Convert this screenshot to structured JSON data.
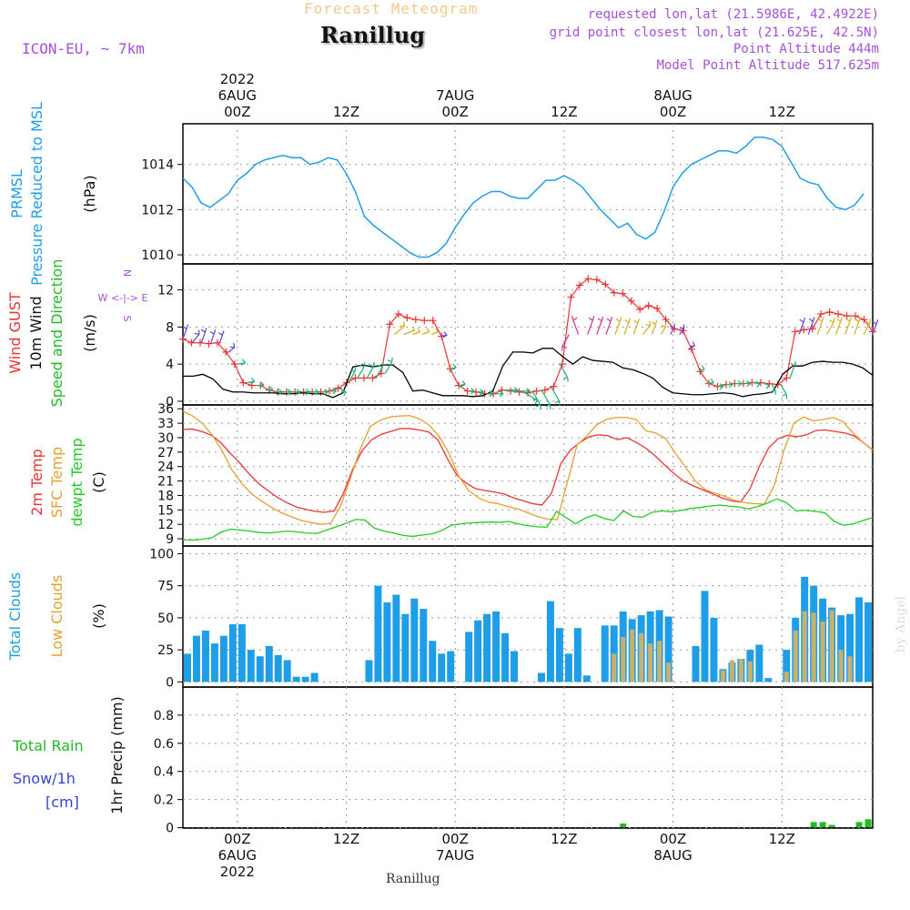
{
  "header": {
    "title": "Forecast Meteogram",
    "station": "Ranillug",
    "model": "ICON-EU, ~ 7km",
    "requested": "requested lon,lat (21.5986E, 42.4922E)",
    "grid_point": "grid point closest lon,lat (21.625E, 42.5N)",
    "point_altitude": "Point Altitude 444m",
    "model_altitude": "Model Point Altitude 517.625m",
    "credit": "by Angel",
    "bottom_name": "Ranillug"
  },
  "colors": {
    "pressure": "#1f9ee8",
    "gust": "#ee3333",
    "wind": "#000000",
    "wind_dir": "#22bb22",
    "temp2m": "#ee3333",
    "sfc_temp": "#e8a030",
    "dewpt": "#22cc22",
    "total_clouds": "#1f9ee8",
    "low_clouds": "#c8b070",
    "rain": "#22bb22",
    "snow": "#3344dd",
    "header": "#a74fdb"
  },
  "time_axis": {
    "top_labels": [
      {
        "h": 6,
        "lines": [
          "2022",
          "6AUG",
          "00Z"
        ]
      },
      {
        "h": 18,
        "lines": [
          "12Z"
        ]
      },
      {
        "h": 30,
        "lines": [
          "7AUG",
          "00Z"
        ]
      },
      {
        "h": 42,
        "lines": [
          "12Z"
        ]
      },
      {
        "h": 54,
        "lines": [
          "8AUG",
          "00Z"
        ]
      },
      {
        "h": 66,
        "lines": [
          "12Z"
        ]
      }
    ],
    "bottom_labels": [
      {
        "h": 6,
        "lines": [
          "00Z",
          "6AUG",
          "2022"
        ]
      },
      {
        "h": 18,
        "lines": [
          "12Z"
        ]
      },
      {
        "h": 30,
        "lines": [
          "00Z",
          "7AUG"
        ]
      },
      {
        "h": 42,
        "lines": [
          "12Z"
        ]
      },
      {
        "h": 54,
        "lines": [
          "00Z",
          "8AUG"
        ]
      },
      {
        "h": 66,
        "lines": [
          "12Z"
        ]
      }
    ]
  },
  "chart_data": [
    {
      "type": "line",
      "title": "",
      "ylabels": [
        "PRMSL",
        "Pressure Reduced to MSL"
      ],
      "unit": "(hPa)",
      "ylim": [
        1009.6,
        1015.8
      ],
      "yticks": [
        1010,
        1012,
        1014
      ],
      "series": [
        {
          "values": [
            1013.4,
            1013.0,
            1012.3,
            1012.1,
            1012.4,
            1012.7,
            1013.3,
            1013.6,
            1014.0,
            1014.2,
            1014.3,
            1014.4,
            1014.3,
            1014.3,
            1014.0,
            1014.1,
            1014.3,
            1014.2,
            1013.6,
            1012.8,
            1011.7,
            1011.3,
            1011.0,
            1010.7,
            1010.4,
            1010.1,
            1009.9,
            1009.9,
            1010.1,
            1010.5,
            1011.2,
            1011.8,
            1012.3,
            1012.6,
            1012.8,
            1012.8,
            1012.6,
            1012.5,
            1012.5,
            1012.9,
            1013.3,
            1013.3,
            1013.5,
            1013.3,
            1013.0,
            1012.5,
            1012.0,
            1011.6,
            1011.2,
            1011.4,
            1010.9,
            1010.7,
            1011.0,
            1011.9,
            1013.0,
            1013.6,
            1014.0,
            1014.2,
            1014.4,
            1014.6,
            1014.6,
            1014.5,
            1014.8,
            1015.2,
            1015.2,
            1015.1,
            1014.8,
            1014.1,
            1013.4,
            1013.2,
            1013.1,
            1012.5,
            1012.1,
            1012.0,
            1012.2,
            1012.7
          ]
        }
      ]
    },
    {
      "type": "line",
      "title": "",
      "ylabels": [
        "Wind GUST",
        "10m Wind",
        "Speed and Direction"
      ],
      "unit": "(m/s)",
      "compass": [
        "N",
        "W <-|-> E",
        "S"
      ],
      "ylim": [
        -0.4,
        14.8
      ],
      "yticks": [
        0,
        4,
        8,
        12
      ],
      "series": [
        {
          "name": "Wind GUST",
          "values": [
            6.7,
            6.3,
            6.3,
            6.2,
            6.3,
            5.3,
            4.0,
            2.0,
            1.7,
            1.7,
            1.2,
            1.0,
            1.0,
            1.0,
            1.0,
            1.0,
            1.0,
            1.1,
            1.4,
            2.0,
            2.5,
            2.5,
            2.5,
            3.0,
            8.3,
            9.4,
            9.0,
            8.8,
            8.7,
            8.7,
            7.0,
            3.5,
            1.7,
            1.1,
            1.0,
            0.8,
            0.8,
            1.2,
            1.1,
            1.0,
            0.9,
            1.1,
            1.2,
            1.6,
            4.0,
            11.2,
            12.5,
            13.2,
            13.1,
            12.6,
            11.7,
            11.6,
            10.8,
            9.9,
            10.3,
            10.0,
            8.8,
            7.8,
            7.6,
            5.6,
            3.2,
            1.9,
            1.6,
            1.8,
            1.9,
            1.9,
            2.0,
            2.0,
            1.9,
            1.8,
            2.5,
            7.5,
            7.7,
            7.8,
            9.4,
            9.6,
            9.4,
            9.2,
            9.2,
            8.8,
            7.5
          ]
        },
        {
          "name": "10m Wind",
          "values": [
            2.7,
            2.7,
            2.9,
            2.4,
            1.3,
            1.0,
            1.0,
            0.9,
            0.9,
            0.9,
            0.8,
            0.8,
            0.9,
            0.8,
            0.8,
            0.4,
            0.9,
            3.7,
            3.9,
            3.7,
            3.9,
            3.9,
            3.1,
            1.1,
            1.2,
            0.9,
            0.6,
            0.6,
            0.6,
            0.5,
            0.6,
            1.1,
            3.8,
            5.3,
            5.3,
            5.2,
            5.7,
            5.7,
            4.8,
            4.0,
            4.8,
            4.4,
            4.3,
            4.2,
            3.6,
            3.4,
            3.0,
            2.5,
            1.5,
            0.9,
            0.8,
            0.7,
            0.7,
            0.8,
            0.9,
            0.8,
            0.5,
            0.7,
            0.8,
            1.0,
            2.9,
            3.8,
            3.8,
            4.2,
            4.3,
            4.2,
            4.2,
            4.0,
            3.6,
            2.8
          ]
        },
        {
          "name": "Direction",
          "values": [
            200,
            220,
            200,
            200,
            200,
            230,
            260,
            260,
            265,
            265,
            270,
            270,
            270,
            270,
            270,
            270,
            270,
            300,
            210,
            210,
            210,
            210,
            210,
            230,
            250,
            250,
            250,
            250,
            260,
            260,
            260,
            270,
            270,
            270,
            270,
            270,
            270,
            300,
            330,
            330,
            330,
            330,
            30,
            160,
            200,
            200,
            200,
            200,
            200,
            200,
            220,
            200,
            210,
            210,
            220,
            240,
            250,
            260,
            270,
            270,
            270,
            270,
            280,
            290,
            330,
            330,
            200,
            200,
            200,
            200,
            210,
            200,
            200,
            200,
            210,
            200
          ]
        }
      ]
    },
    {
      "type": "line",
      "title": "",
      "ylabels": [
        "2m Temp",
        "SFC Temp",
        "dewpt Temp"
      ],
      "unit": "(C)",
      "ylim": [
        7.5,
        36.8
      ],
      "yticks": [
        9,
        12,
        15,
        18,
        21,
        24,
        27,
        30,
        33,
        36
      ],
      "series": [
        {
          "name": "2m Temp",
          "values": [
            31.7,
            31.8,
            31.3,
            30.5,
            29.0,
            26.8,
            24.8,
            22.5,
            20.5,
            19.0,
            17.6,
            16.5,
            15.6,
            15.1,
            14.7,
            14.5,
            14.8,
            18.5,
            23.6,
            27.4,
            29.6,
            30.7,
            31.3,
            31.9,
            31.9,
            31.6,
            31.2,
            29.5,
            25.6,
            22.2,
            20.5,
            19.4,
            19.0,
            18.7,
            18.3,
            17.5,
            16.9,
            16.3,
            16.0,
            18.4,
            24.6,
            27.4,
            29.0,
            30.2,
            30.6,
            30.4,
            29.6,
            30.0,
            29.0,
            27.8,
            26.2,
            24.3,
            22.5,
            21.0,
            20.0,
            19.2,
            18.4,
            17.5,
            16.9,
            16.6,
            19.3,
            24.0,
            27.9,
            29.8,
            30.5,
            30.2,
            30.6,
            31.5,
            31.6,
            31.3,
            31.0,
            30.4,
            29.0,
            27.4
          ]
        },
        {
          "name": "SFC Temp",
          "values": [
            35.5,
            34.5,
            32.9,
            30.5,
            27.2,
            23.2,
            20.4,
            18.3,
            16.8,
            15.5,
            14.4,
            13.6,
            12.8,
            12.4,
            12.0,
            12.2,
            15.8,
            21.6,
            27.6,
            32.3,
            33.6,
            34.3,
            34.5,
            34.6,
            33.9,
            32.6,
            30.3,
            26.8,
            22.0,
            19.0,
            17.5,
            16.6,
            16.3,
            15.7,
            15.2,
            14.4,
            13.6,
            13.1,
            13.0,
            20.6,
            28.5,
            30.4,
            32.7,
            33.8,
            34.2,
            34.2,
            33.8,
            31.4,
            31.0,
            29.8,
            26.7,
            23.9,
            21.0,
            19.2,
            18.5,
            17.8,
            17.0,
            16.5,
            16.3,
            16.2,
            20.0,
            27.4,
            33.0,
            34.3,
            33.5,
            33.8,
            34.2,
            33.3,
            31.0,
            29.0,
            27.5
          ]
        },
        {
          "name": "dewpt Temp",
          "values": [
            8.8,
            8.7,
            8.9,
            9.2,
            10.4,
            11.0,
            10.8,
            10.6,
            10.3,
            10.2,
            10.4,
            10.6,
            10.4,
            10.2,
            10.1,
            10.8,
            11.5,
            12.2,
            13.0,
            12.9,
            11.2,
            10.6,
            10.2,
            9.7,
            9.5,
            9.8,
            10.0,
            10.7,
            11.8,
            12.1,
            12.3,
            12.4,
            12.5,
            12.4,
            12.6,
            12.1,
            11.7,
            11.5,
            11.4,
            14.7,
            13.4,
            12.1,
            13.3,
            14.0,
            13.2,
            12.8,
            14.8,
            13.6,
            13.5,
            14.5,
            14.8,
            14.6,
            14.9,
            15.3,
            15.5,
            15.8,
            16.0,
            15.8,
            15.6,
            15.2,
            15.7,
            16.4,
            17.3,
            16.5,
            14.8,
            14.9,
            14.7,
            14.4,
            12.6,
            11.8,
            12.1,
            12.8,
            13.4
          ]
        }
      ]
    },
    {
      "type": "bar",
      "title": "",
      "ylabels": [
        "Total Clouds",
        "Low Clouds"
      ],
      "unit": "(%)",
      "ylim": [
        -4,
        106
      ],
      "yticks": [
        0,
        25,
        50,
        75,
        100
      ],
      "series": [
        {
          "name": "Total Clouds",
          "values": [
            22,
            36,
            40,
            30,
            36,
            45,
            45,
            25,
            20,
            28,
            21,
            17,
            4,
            4,
            7,
            0,
            0,
            0,
            0,
            0,
            17,
            75,
            62,
            68,
            53,
            65,
            57,
            32,
            22,
            24,
            0,
            39,
            48,
            53,
            55,
            38,
            24,
            0,
            0,
            7,
            63,
            42,
            22,
            42,
            5,
            0,
            44,
            44,
            55,
            49,
            52,
            55,
            56,
            51,
            0,
            0,
            28,
            71,
            50,
            10,
            15,
            18,
            25,
            29,
            3,
            0,
            25,
            50,
            82,
            75,
            65,
            58,
            52,
            53,
            66,
            62
          ]
        },
        {
          "name": "Low Clouds",
          "values": [
            0,
            0,
            0,
            0,
            0,
            0,
            0,
            0,
            0,
            0,
            0,
            0,
            0,
            0,
            0,
            0,
            0,
            0,
            0,
            0,
            0,
            0,
            0,
            0,
            0,
            0,
            0,
            0,
            0,
            0,
            0,
            0,
            0,
            0,
            0,
            0,
            0,
            0,
            0,
            0,
            0,
            0,
            0,
            0,
            0,
            0,
            0,
            22,
            35,
            41,
            38,
            30,
            32,
            15,
            0,
            0,
            0,
            0,
            0,
            9,
            17,
            18,
            16,
            0,
            0,
            0,
            8,
            40,
            55,
            54,
            47,
            56,
            25,
            20,
            0,
            0
          ]
        }
      ]
    },
    {
      "type": "bar",
      "title": "",
      "ylabels": [
        "Total  Rain",
        "Snow/1h",
        "[cm]"
      ],
      "ylabel": "1hr Precip (mm)",
      "ylim": [
        -0.003,
        1.0
      ],
      "yticks": [
        0,
        0.2,
        0.4,
        0.6,
        0.8
      ],
      "series": [
        {
          "name": "Total Rain",
          "values": [
            0,
            0,
            0,
            0,
            0,
            0,
            0,
            0,
            0,
            0,
            0,
            0,
            0,
            0,
            0,
            0,
            0,
            0,
            0,
            0,
            0,
            0,
            0,
            0,
            0,
            0,
            0,
            0,
            0,
            0,
            0,
            0,
            0,
            0,
            0,
            0,
            0,
            0,
            0,
            0,
            0,
            0,
            0,
            0,
            0,
            0,
            0,
            0,
            0.03,
            0,
            0,
            0,
            0,
            0,
            0,
            0,
            0,
            0,
            0,
            0,
            0,
            0,
            0,
            0,
            0,
            0,
            0,
            0,
            0,
            0.04,
            0.04,
            0.02,
            0,
            0,
            0.04,
            0.06
          ]
        }
      ]
    }
  ]
}
